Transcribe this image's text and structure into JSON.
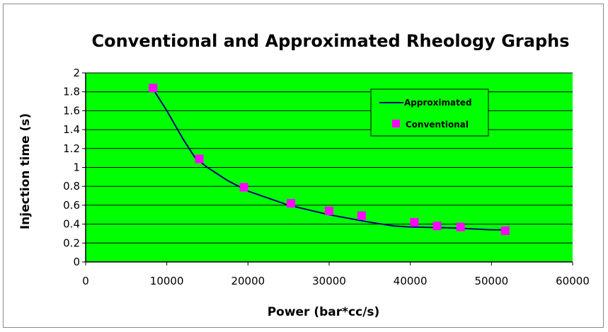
{
  "chart_data": {
    "type": "scatter",
    "title": "Conventional and Approximated Rheology Graphs",
    "xlabel": "Power (bar*cc/s)",
    "ylabel": "Injection time (s)",
    "xlim": [
      0,
      60000
    ],
    "ylim": [
      0,
      2
    ],
    "x_ticks": [
      0,
      10000,
      20000,
      30000,
      40000,
      50000,
      60000
    ],
    "y_ticks": [
      0,
      0.2,
      0.4,
      0.6,
      0.8,
      1,
      1.2,
      1.4,
      1.6,
      1.8,
      2
    ],
    "grid": "horizontal",
    "plot_background": "#00ff00",
    "legend_position": "top-right",
    "series": [
      {
        "name": "Approximated",
        "kind": "line",
        "color": "#000080",
        "x": [
          8300,
          10000,
          12000,
          13500,
          15000,
          17500,
          20000,
          25000,
          30000,
          35000,
          38000,
          40000,
          45000,
          50000,
          51800
        ],
        "y": [
          1.83,
          1.6,
          1.3,
          1.1,
          1.0,
          0.86,
          0.75,
          0.6,
          0.5,
          0.42,
          0.38,
          0.37,
          0.36,
          0.34,
          0.34
        ]
      },
      {
        "name": "Conventional",
        "kind": "marker",
        "color": "#ff00ff",
        "x": [
          8300,
          14000,
          19500,
          25300,
          30000,
          34000,
          40500,
          43300,
          46200,
          51700
        ],
        "y": [
          1.84,
          1.09,
          0.79,
          0.62,
          0.54,
          0.49,
          0.42,
          0.38,
          0.37,
          0.33
        ]
      }
    ]
  }
}
